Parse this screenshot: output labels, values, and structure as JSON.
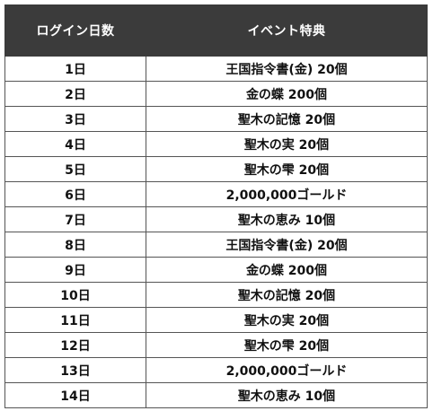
{
  "table": {
    "headers": [
      "ログイン日数",
      "イベント特典"
    ],
    "rows": [
      [
        "1日",
        "王国指令書(金) 20個"
      ],
      [
        "2日",
        "金の蝶 200個"
      ],
      [
        "3日",
        "聖木の記憶 20個"
      ],
      [
        "4日",
        "聖木の実 20個"
      ],
      [
        "5日",
        "聖木の雫 20個"
      ],
      [
        "6日",
        "2,000,000ゴールド"
      ],
      [
        "7日",
        "聖木の恵み 10個"
      ],
      [
        "8日",
        "王国指令書(金) 20個"
      ],
      [
        "9日",
        "金の蝶 200個"
      ],
      [
        "10日",
        "聖木の記憶 20個"
      ],
      [
        "11日",
        "聖木の実 20個"
      ],
      [
        "12日",
        "聖木の雫 20個"
      ],
      [
        "13日",
        "2,000,000ゴールド"
      ],
      [
        "14日",
        "聖木の恵み 10個"
      ]
    ]
  }
}
